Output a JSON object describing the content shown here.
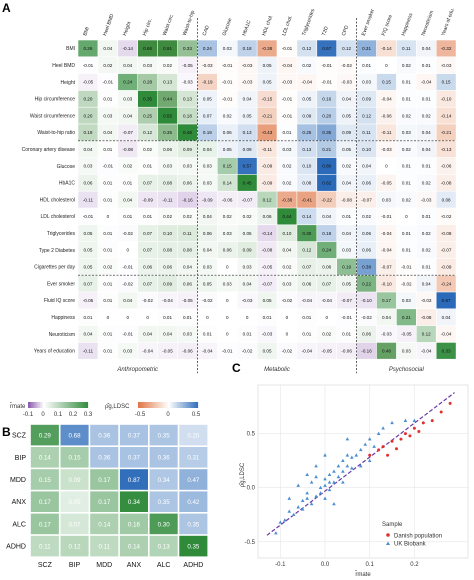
{
  "panels": {
    "a": "A",
    "b": "B",
    "c": "C"
  },
  "colors": {
    "pos_a": "#3e8a3e",
    "neg_a": "#8e5cb0",
    "pos_b": "#2a6ab8",
    "neg_b": "#e07848",
    "pos_c": "#2f8a3a",
    "danish": "#e03030",
    "ukb": "#4a8fd0"
  },
  "chart_data": [
    {
      "type": "heatmap",
      "id": "A",
      "columns": [
        "BMI",
        "Heel BMD",
        "Height",
        "Hip circ.",
        "Waist circ.",
        "Waist-to-hip",
        "CAD",
        "Glucose",
        "HbA1C",
        "HDL chol.",
        "LDL chol.",
        "Triglycerides",
        "T2D",
        "CPD",
        "Ever smoker",
        "FIQ score",
        "Happiness",
        "Neuroticism",
        "Years of edu."
      ],
      "rows": [
        "BMI",
        "Heel BMD",
        "Height",
        "Hip circumference",
        "Waist circumference",
        "Waist-to-hip ratio",
        "Coronary artery disease",
        "Glucose",
        "HbA1C",
        "HDL cholesterol",
        "LDL cholesterol",
        "Triglycerides",
        "Type 2 Diabetes",
        "Cigarettes per day",
        "Ever smoker",
        "Fluid IQ score",
        "Happiness",
        "Neuroticism",
        "Years of education"
      ],
      "values": [
        [
          0.26,
          0.04,
          -0.14,
          0.66,
          0.91,
          0.33,
          0.24,
          0.03,
          0.18,
          -0.38,
          -0.01,
          0.12,
          0.57,
          0.12,
          0.31,
          -0.14,
          0.11,
          0.04,
          -0.32
        ],
        [
          -0.01,
          0.02,
          0.04,
          0.03,
          0.02,
          -0.05,
          -0.03,
          -0.01,
          -0.03,
          0.05,
          -0.04,
          0.02,
          -0.01,
          -0.02,
          0.01,
          0.0,
          0.02,
          0.01,
          -0.03
        ],
        [
          -0.05,
          -0.01,
          0.24,
          0.28,
          0.13,
          -0.03,
          -0.19,
          -0.01,
          -0.03,
          0.05,
          -0.03,
          -0.04,
          -0.01,
          -0.03,
          0.03,
          0.15,
          0.01,
          -0.04,
          0.15
        ],
        [
          0.2,
          0.01,
          0.03,
          0.35,
          0.44,
          0.13,
          0.05,
          -0.01,
          0.04,
          -0.15,
          -0.01,
          0.05,
          0.16,
          0.04,
          0.09,
          -0.04,
          0.01,
          0.01,
          -0.1
        ],
        [
          0.2,
          0.03,
          0.04,
          0.25,
          0.55,
          0.18,
          0.07,
          0.02,
          0.05,
          -0.21,
          -0.01,
          0.09,
          0.2,
          0.05,
          0.12,
          -0.06,
          0.02,
          0.02,
          -0.14
        ],
        [
          0.19,
          0.04,
          -0.07,
          0.12,
          0.35,
          0.48,
          0.19,
          0.06,
          0.13,
          -0.43,
          0.01,
          0.25,
          0.35,
          0.09,
          0.11,
          -0.11,
          0.03,
          0.04,
          -0.21
        ],
        [
          0.04,
          0.01,
          -0.08,
          0.02,
          0.06,
          0.09,
          0.04,
          0.05,
          0.09,
          -0.11,
          0.03,
          0.13,
          0.21,
          0.05,
          0.1,
          -0.03,
          0.02,
          0.04,
          -0.13
        ],
        [
          0.03,
          -0.01,
          0.02,
          0.01,
          0.03,
          0.03,
          0.03,
          0.15,
          0.57,
          -0.09,
          0.02,
          0.1,
          0.6,
          0.02,
          0.04,
          0.0,
          0.01,
          0.01,
          -0.06
        ],
        [
          0.06,
          0.01,
          0.01,
          0.07,
          0.08,
          0.06,
          0.03,
          0.14,
          0.45,
          -0.09,
          0.02,
          0.08,
          0.62,
          0.04,
          0.06,
          -0.05,
          0.01,
          0.02,
          -0.08
        ],
        [
          -0.11,
          0.01,
          0.04,
          -0.09,
          -0.11,
          -0.16,
          -0.09,
          -0.06,
          -0.07,
          0.12,
          -0.38,
          -0.41,
          -0.22,
          -0.08,
          -0.07,
          0.03,
          0.02,
          -0.03,
          0.08
        ],
        [
          -0.01,
          0.0,
          0.01,
          0.01,
          0.02,
          0.02,
          0.04,
          0.02,
          0.02,
          0.06,
          0.44,
          0.14,
          0.04,
          0.01,
          0.02,
          -0.01,
          0.0,
          0.01,
          -0.02
        ],
        [
          0.05,
          0.01,
          -0.02,
          0.07,
          0.1,
          0.11,
          0.06,
          0.03,
          0.05,
          -0.14,
          0.1,
          0.3,
          0.18,
          0.04,
          0.06,
          -0.04,
          0.01,
          0.02,
          -0.08
        ],
        [
          0.05,
          0.01,
          0.0,
          0.07,
          0.08,
          0.08,
          0.04,
          0.06,
          0.09,
          -0.08,
          0.04,
          0.12,
          0.24,
          0.03,
          0.06,
          -0.04,
          0.01,
          0.02,
          -0.07
        ],
        [
          0.05,
          0.02,
          -0.01,
          0.06,
          0.06,
          0.04,
          0.03,
          0.0,
          0.03,
          -0.05,
          0.02,
          0.07,
          0.06,
          0.19,
          0.38,
          -0.07,
          -0.01,
          0.01,
          -0.09
        ],
        [
          0.07,
          0.01,
          -0.02,
          0.07,
          0.09,
          0.06,
          0.05,
          0.03,
          0.04,
          -0.07,
          0.03,
          0.06,
          0.07,
          0.05,
          0.22,
          -0.1,
          -0.02,
          0.04,
          -0.24
        ],
        [
          -0.05,
          0.01,
          0.04,
          -0.02,
          -0.04,
          -0.05,
          -0.02,
          0.0,
          -0.03,
          0.05,
          -0.02,
          -0.04,
          -0.04,
          -0.07,
          -0.1,
          0.17,
          0.03,
          -0.03,
          0.67
        ],
        [
          0.01,
          0.0,
          0.0,
          0.0,
          0.01,
          0.01,
          0.0,
          0.0,
          0.0,
          0.01,
          0.0,
          0.01,
          0.0,
          -0.01,
          -0.02,
          0.04,
          0.21,
          -0.08,
          0.04
        ],
        [
          0.04,
          0.01,
          -0.01,
          0.04,
          0.04,
          0.03,
          0.01,
          0.0,
          0.01,
          -0.03,
          0.0,
          0.01,
          0.02,
          0.01,
          0.06,
          -0.03,
          -0.05,
          0.12,
          -0.04
        ],
        [
          -0.11,
          0.01,
          0.03,
          -0.04,
          -0.05,
          -0.06,
          -0.04,
          -0.01,
          -0.02,
          0.05,
          -0.02,
          -0.04,
          -0.05,
          -0.06,
          -0.16,
          0.48,
          0.03,
          -0.04,
          0.33
        ]
      ],
      "group_labels": [
        "Anthropometric",
        "Metabolic",
        "Psychosocial"
      ]
    },
    {
      "type": "heatmap",
      "id": "B",
      "legend": {
        "mate_label": "r̂mate",
        "mate_ticks": [
          "-0.1",
          "0",
          "0.1",
          "0.2",
          "0.3"
        ],
        "ldsc_label": "ρ̂g,LDSC",
        "ldsc_ticks": [
          "-0.5",
          "0",
          "0.5"
        ]
      },
      "rows": [
        "SCZ",
        "BIP",
        "MDD",
        "ANX",
        "ALC",
        "ADHD"
      ],
      "columns": [
        "SCZ",
        "BIP",
        "MDD",
        "ANX",
        "ALC",
        "ADHD"
      ],
      "values": [
        [
          0.29,
          0.68,
          0.36,
          0.37,
          0.35,
          0.2
        ],
        [
          0.14,
          0.15,
          0.36,
          0.37,
          0.36,
          0.31
        ],
        [
          0.15,
          0.09,
          0.17,
          0.87,
          0.34,
          0.47
        ],
        [
          0.17,
          0.05,
          0.17,
          0.34,
          0.35,
          0.42
        ],
        [
          0.17,
          0.07,
          0.14,
          0.16,
          0.3,
          0.35
        ],
        [
          0.11,
          0.12,
          0.11,
          0.14,
          0.13,
          0.35
        ]
      ]
    },
    {
      "type": "scatter",
      "id": "C",
      "xlabel": "r̂mate",
      "ylabel": "ρ̂g,LDSC",
      "xlim": [
        -0.15,
        0.32
      ],
      "ylim": [
        -0.65,
        0.95
      ],
      "xticks": [
        "-0.1",
        "0.0",
        "0.1",
        "0.2"
      ],
      "yticks": [
        "-0.5",
        "0.0",
        "0.5"
      ],
      "legend": {
        "title": "Sample",
        "items": [
          "Danish population",
          "UK Biobank"
        ]
      },
      "reference_line": [
        [
          -0.13,
          -0.44
        ],
        [
          0.29,
          0.88
        ]
      ],
      "series": [
        {
          "name": "Danish population",
          "points": [
            [
              0.13,
              0.38
            ],
            [
              0.15,
              0.43
            ],
            [
              0.17,
              0.45
            ],
            [
              0.18,
              0.5
            ],
            [
              0.19,
              0.48
            ],
            [
              0.2,
              0.55
            ],
            [
              0.22,
              0.6
            ],
            [
              0.24,
              0.62
            ],
            [
              0.14,
              0.3
            ],
            [
              0.12,
              0.35
            ],
            [
              0.16,
              0.36
            ],
            [
              0.21,
              0.52
            ],
            [
              0.26,
              0.7
            ],
            [
              0.28,
              0.78
            ],
            [
              0.1,
              0.3
            ]
          ]
        },
        {
          "name": "UK Biobank",
          "points": [
            [
              -0.11,
              -0.42
            ],
            [
              -0.1,
              -0.32
            ],
            [
              -0.09,
              -0.3
            ],
            [
              -0.08,
              -0.22
            ],
            [
              -0.07,
              -0.25
            ],
            [
              -0.06,
              -0.18
            ],
            [
              -0.05,
              -0.12
            ],
            [
              -0.05,
              -0.2
            ],
            [
              -0.04,
              -0.1
            ],
            [
              -0.04,
              -0.05
            ],
            [
              -0.03,
              -0.15
            ],
            [
              -0.03,
              0.05
            ],
            [
              -0.02,
              -0.08
            ],
            [
              -0.02,
              0.1
            ],
            [
              -0.01,
              0.0
            ],
            [
              -0.01,
              -0.05
            ],
            [
              0.0,
              0.02
            ],
            [
              0.0,
              0.08
            ],
            [
              0.0,
              -0.1
            ],
            [
              0.01,
              0.05
            ],
            [
              0.01,
              0.12
            ],
            [
              0.01,
              -0.02
            ],
            [
              0.02,
              0.15
            ],
            [
              0.02,
              0.05
            ],
            [
              0.03,
              0.1
            ],
            [
              0.03,
              0.2
            ],
            [
              0.04,
              0.15
            ],
            [
              0.04,
              0.25
            ],
            [
              0.05,
              0.2
            ],
            [
              0.05,
              0.3
            ],
            [
              0.06,
              0.28
            ],
            [
              0.06,
              0.18
            ],
            [
              0.07,
              0.3
            ],
            [
              0.08,
              0.35
            ],
            [
              0.09,
              0.4
            ],
            [
              0.1,
              0.45
            ],
            [
              0.11,
              0.38
            ],
            [
              0.12,
              0.5
            ],
            [
              0.13,
              0.55
            ],
            [
              0.15,
              0.6
            ],
            [
              0.18,
              0.62
            ],
            [
              0.2,
              0.62
            ],
            [
              -0.06,
              0.02
            ],
            [
              -0.02,
              0.2
            ],
            [
              0.02,
              -0.15
            ],
            [
              0.05,
              0.45
            ],
            [
              0.0,
              0.3
            ],
            [
              -0.04,
              0.12
            ],
            [
              0.08,
              0.2
            ],
            [
              0.04,
              0.05
            ],
            [
              -0.08,
              -0.1
            ],
            [
              0.1,
              0.25
            ]
          ]
        }
      ]
    }
  ]
}
